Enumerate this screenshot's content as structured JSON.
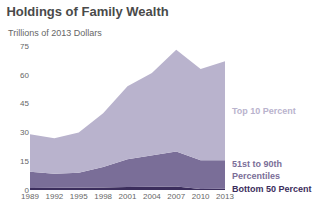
{
  "chart_data": {
    "type": "area",
    "stacked": true,
    "title": "Holdings of Family Wealth",
    "subtitle": "Trillions of 2013 Dollars",
    "categories": [
      "1989",
      "1992",
      "1995",
      "1998",
      "2001",
      "2004",
      "2007",
      "2010",
      "2013"
    ],
    "series": [
      {
        "name": "Bottom 50 Percent",
        "color": "#3b2d5c",
        "values": [
          1.0,
          1.0,
          1.2,
          1.3,
          1.6,
          1.7,
          1.8,
          0.5,
          0.6
        ]
      },
      {
        "name": "51st to 90th Percentiles",
        "color": "#7a6e98",
        "values": [
          8.5,
          7.5,
          7.8,
          10.7,
          14.4,
          16.3,
          18.2,
          15.0,
          14.9
        ]
      },
      {
        "name": "Top 10 Percent",
        "color": "#b9b3cd",
        "values": [
          19.5,
          18.5,
          21.0,
          28.0,
          38.0,
          43.0,
          53.0,
          47.5,
          51.5
        ]
      }
    ],
    "ylim": [
      0,
      75
    ],
    "yticks": [
      0,
      15,
      30,
      45,
      60,
      75
    ],
    "grid": false
  }
}
